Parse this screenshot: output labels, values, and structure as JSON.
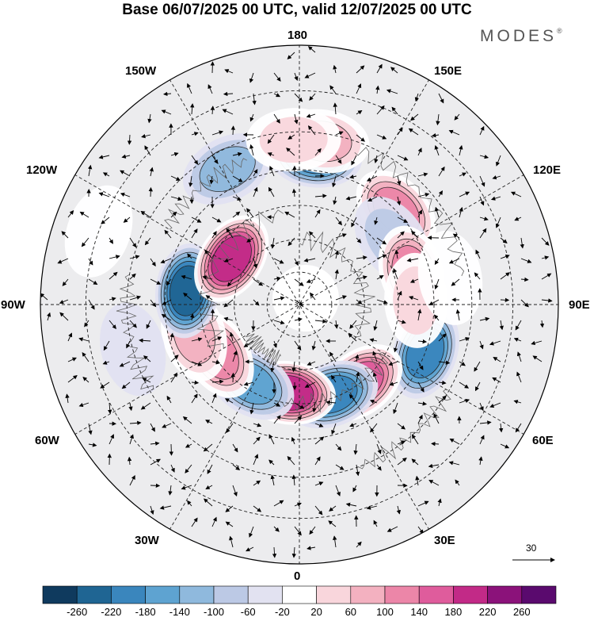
{
  "title": "Base 06/07/2025 00 UTC, valid 12/07/2025 00 UTC",
  "brand": "MODES",
  "brand_mark": "®",
  "longitude_labels": {
    "top": "180",
    "bottom": "0",
    "left": "90W",
    "right": "90E",
    "upper_left": "150W",
    "upper_right": "150E",
    "mid_upper_left": "120W",
    "mid_upper_right": "120E",
    "mid_lower_left": "60W",
    "mid_lower_right": "60E",
    "lower_left": "30W",
    "lower_right": "30E"
  },
  "vector_scale": {
    "label": "30"
  },
  "colorbar": {
    "colors": [
      "#0f3a5e",
      "#1f6593",
      "#3a86bd",
      "#5ea3d1",
      "#8fb9dd",
      "#bcc9e5",
      "#e2e2f1",
      "#ffffff",
      "#f9d6dc",
      "#f3b1c0",
      "#ec86a8",
      "#df5c9c",
      "#c22a87",
      "#8b127a",
      "#5a0a6e"
    ],
    "tick_labels": [
      "-260",
      "-220",
      "-180",
      "-140",
      "-100",
      "-60",
      "-20",
      "20",
      "60",
      "100",
      "140",
      "180",
      "220",
      "260"
    ]
  },
  "anomaly_centers": [
    {
      "lon": 174,
      "colat": 44,
      "value": -190
    },
    {
      "lon": 134,
      "colat": 40,
      "value": 170
    },
    {
      "lon": 125,
      "colat": 34,
      "value": -60
    },
    {
      "lon": 106,
      "colat": 35,
      "value": 160
    },
    {
      "lon": 69,
      "colat": 40,
      "value": -200
    },
    {
      "lon": 38,
      "colat": 30,
      "value": 210
    },
    {
      "lon": 20,
      "colat": 29,
      "value": -190
    },
    {
      "lon": -7,
      "colat": 27,
      "value": 230
    },
    {
      "lon": -32,
      "colat": 28,
      "value": -140
    },
    {
      "lon": -59,
      "colat": 29,
      "value": 160
    },
    {
      "lon": -74,
      "colat": 33,
      "value": 120
    },
    {
      "lon": -97,
      "colat": 34,
      "value": -220
    },
    {
      "lon": -124,
      "colat": 25,
      "value": 220
    },
    {
      "lon": -152,
      "colat": 45,
      "value": -110
    },
    {
      "lon": 172,
      "colat": 48,
      "value": 110
    },
    {
      "lon": -178,
      "colat": 48,
      "value": 90
    },
    {
      "lon": 92,
      "colat": 35,
      "value": 70
    },
    {
      "lon": 100,
      "colat": 45,
      "value": 50
    },
    {
      "lon": -75,
      "colat": 50,
      "value": -40
    },
    {
      "lon": -110,
      "colat": 60,
      "value": 50
    }
  ]
}
